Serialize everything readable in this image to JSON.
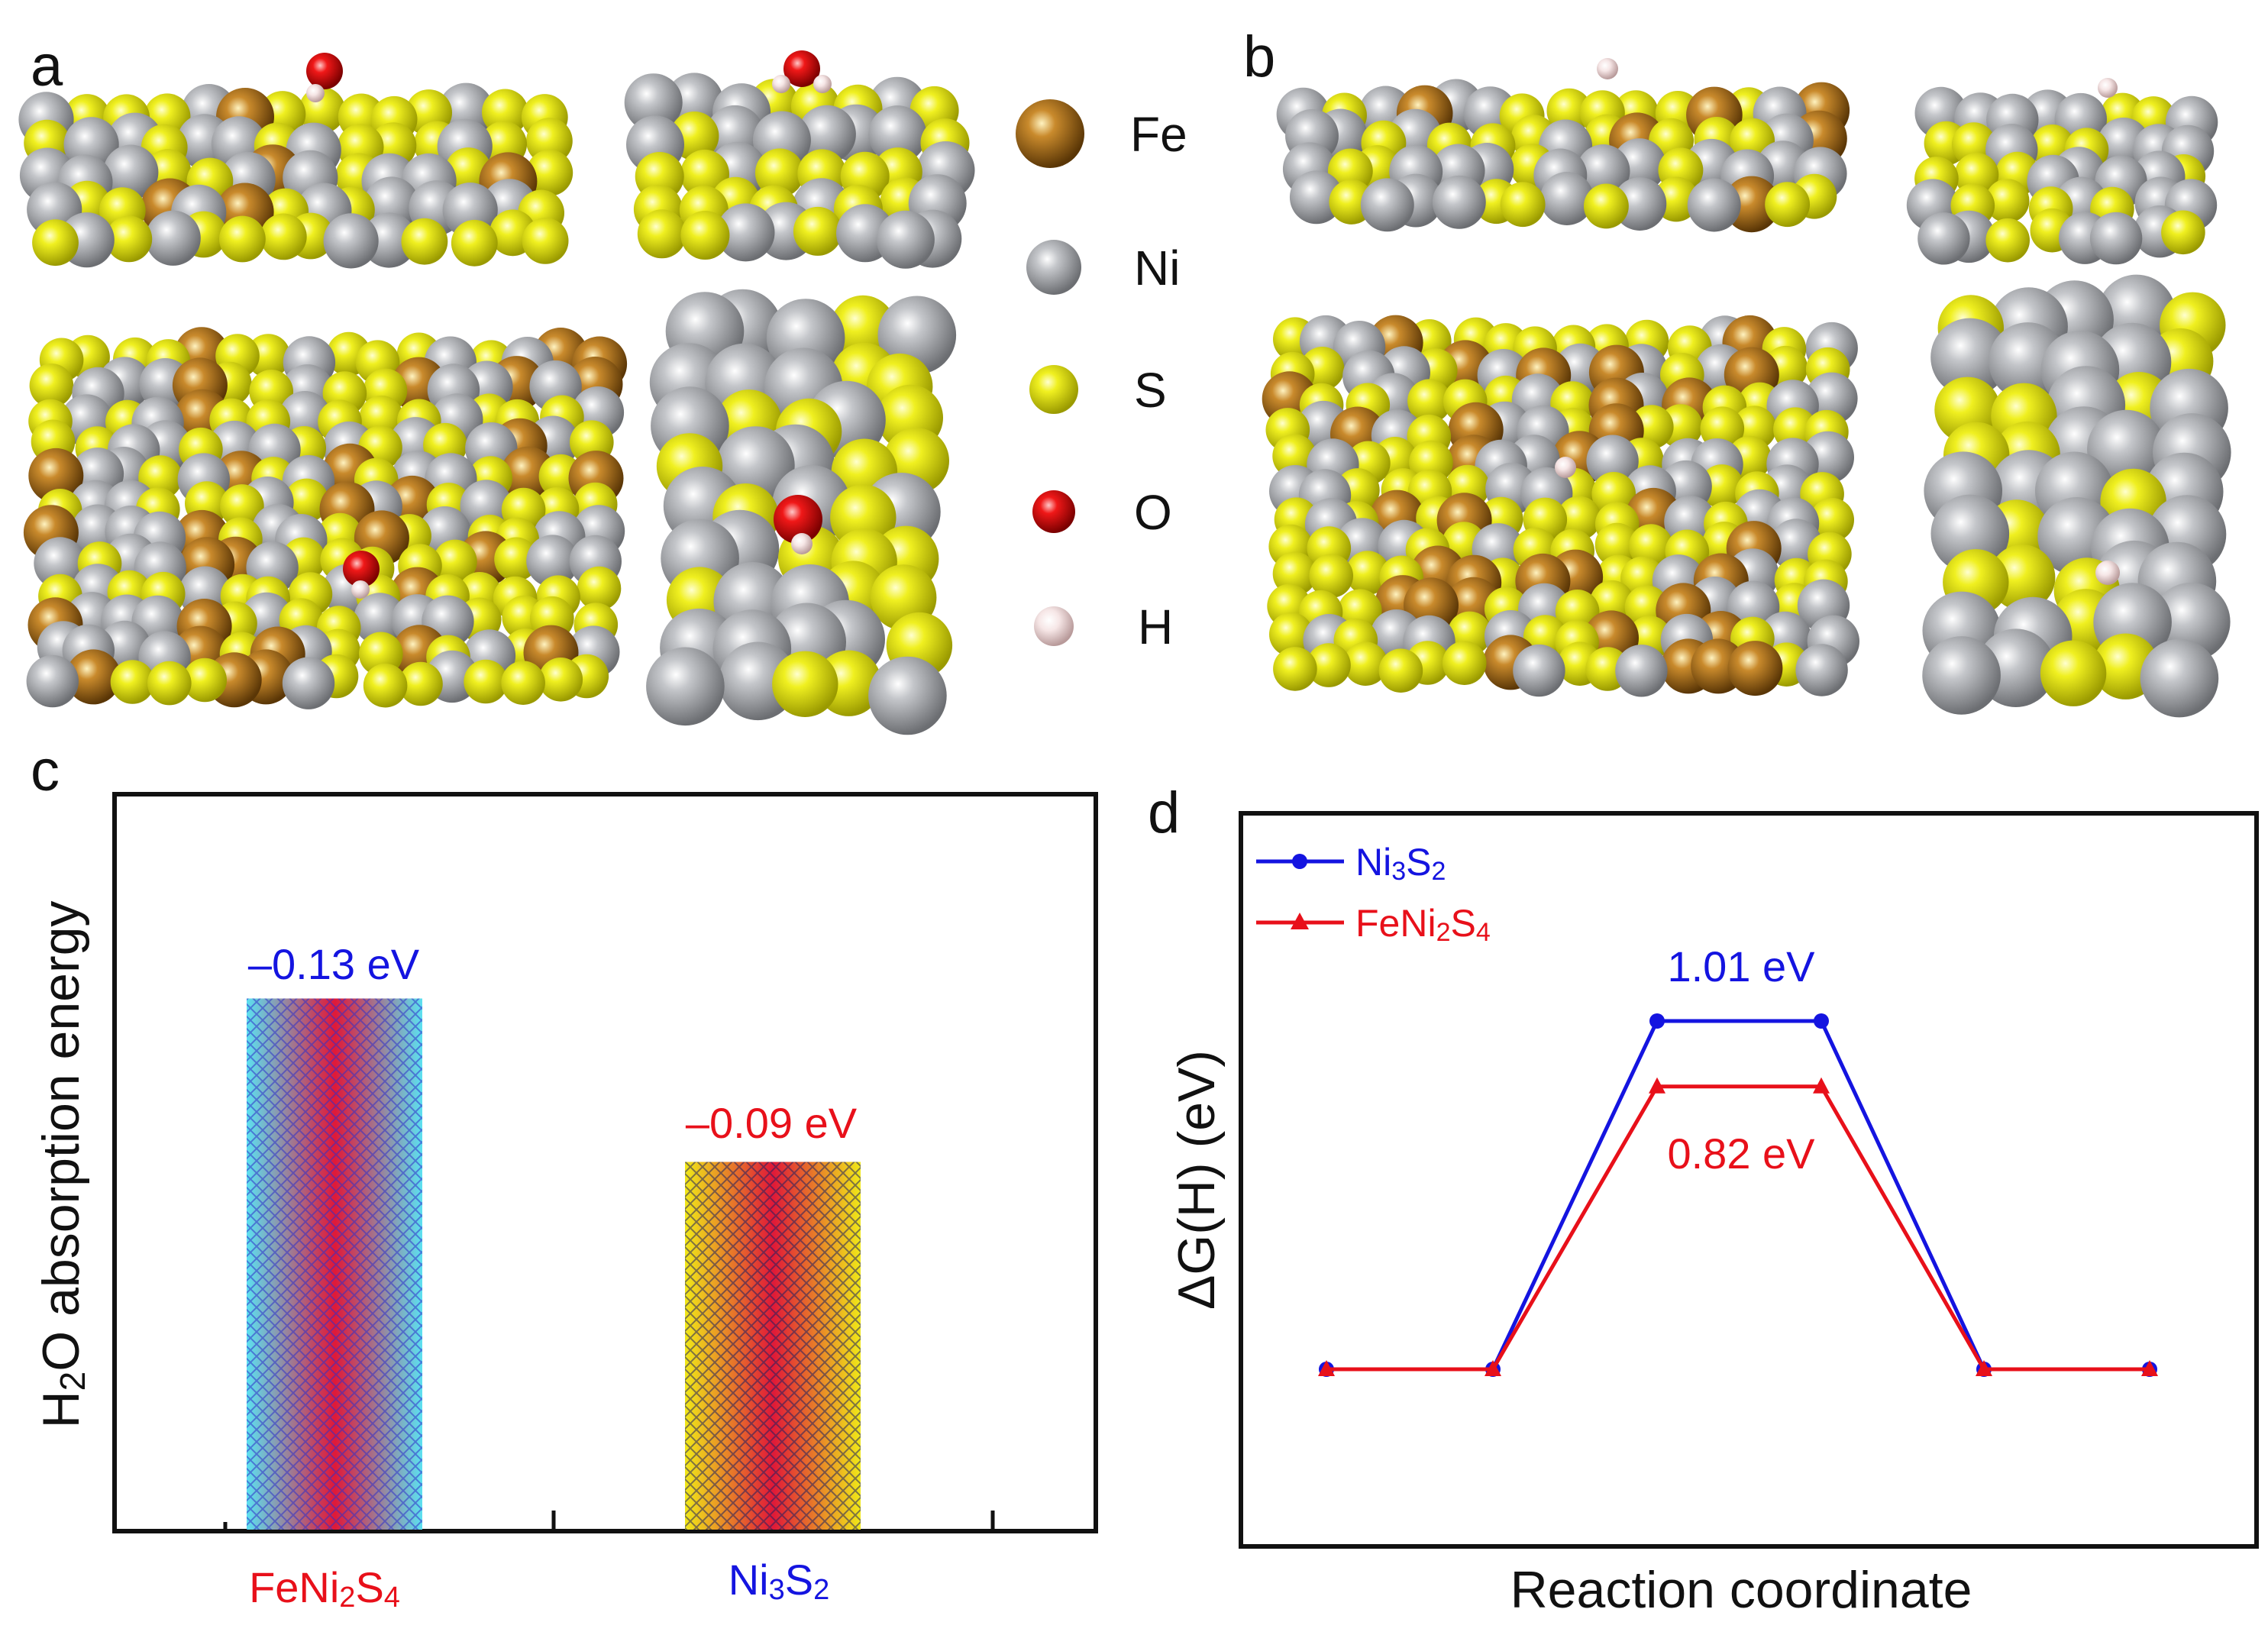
{
  "panel_labels": {
    "a": "a",
    "b": "b",
    "c": "c",
    "d": "d"
  },
  "legend_atoms": [
    {
      "symbol": "Fe",
      "color": "#9a6414"
    },
    {
      "symbol": "Ni",
      "color": "#a6a8ac"
    },
    {
      "symbol": "S",
      "color": "#e6e60a"
    },
    {
      "symbol": "O",
      "color": "#e01010"
    },
    {
      "symbol": "H",
      "color": "#f2dede"
    }
  ],
  "chart_data": [
    {
      "id": "c",
      "type": "bar",
      "title": "",
      "xlabel": "",
      "ylabel": "H2O absorption energy",
      "ylabel_parts": {
        "pre": "H",
        "sub": "2",
        "post": "O absorption energy"
      },
      "categories": [
        "FeNi2S4",
        "Ni3S2"
      ],
      "category_parts": [
        {
          "a": "FeNi",
          "a_sub": "2",
          "b": "S",
          "b_sub": "4",
          "color": "#e8101a"
        },
        {
          "a": "Ni",
          "a_sub": "3",
          "b": "S",
          "b_sub": "2",
          "color": "#1414e0"
        }
      ],
      "values": [
        -0.13,
        -0.09
      ],
      "value_labels": [
        "–0.13 eV",
        "–0.09 eV"
      ],
      "value_label_colors": [
        "#1414e0",
        "#e8101a"
      ],
      "bar_colors": [
        {
          "edge": "#5ce0f0",
          "center": "#e01838",
          "hatch": "#3030c8"
        },
        {
          "edge": "#f0e818",
          "center": "#e01838",
          "hatch": "#202060"
        }
      ],
      "ylim": [
        0,
        -0.18
      ]
    },
    {
      "id": "d",
      "type": "line",
      "title": "",
      "xlabel": "Reaction coordinate",
      "ylabel": "ΔG(H) (eV)",
      "x": [
        0,
        1,
        2,
        3,
        4,
        5
      ],
      "series": [
        {
          "name": "Ni3S2",
          "name_parts": {
            "a": "Ni",
            "a_sub": "3",
            "b": "S",
            "b_sub": "2"
          },
          "color": "#1414e0",
          "marker": "circle",
          "values": [
            0,
            0,
            1.01,
            1.01,
            0,
            0
          ],
          "annotation": "1.01 eV"
        },
        {
          "name": "FeNi2S4",
          "name_parts": {
            "a": "FeNi",
            "a_sub": "2",
            "b": "S",
            "b_sub": "4"
          },
          "color": "#e8101a",
          "marker": "triangle",
          "values": [
            0,
            0,
            0.82,
            0.82,
            0,
            0
          ],
          "annotation": "0.82 eV"
        }
      ],
      "ylim": [
        -0.5,
        1.6
      ],
      "legend_position": "top-left"
    }
  ]
}
